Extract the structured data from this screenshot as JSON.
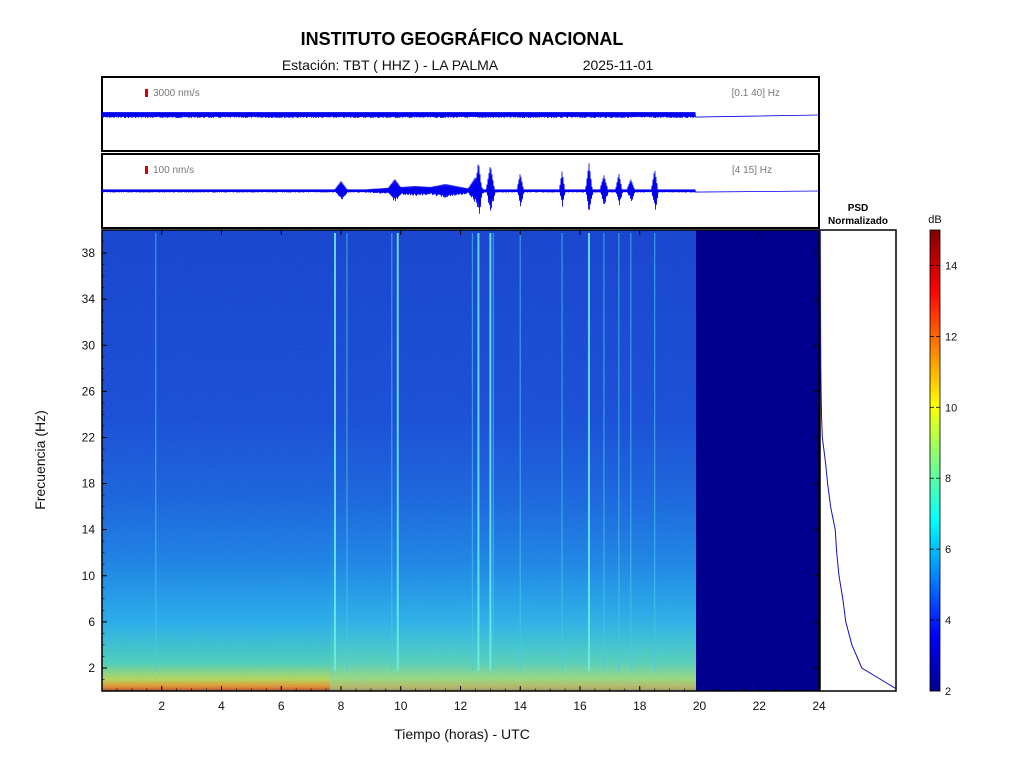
{
  "header": {
    "title": "INSTITUTO GEOGRÁFICO NACIONAL",
    "station": "Estación:  TBT ( HHZ ) - LA PALMA",
    "date": "2025-11-01"
  },
  "trace_top": {
    "scale_label": "3000 nm/s",
    "band_label": "[0.1 40] Hz"
  },
  "trace_bottom": {
    "scale_label": "100 nm/s",
    "band_label": "[4 15] Hz"
  },
  "psd": {
    "title_line1": "PSD",
    "title_line2": "Normalizado"
  },
  "colorbar": {
    "unit": "dB",
    "min": 2,
    "max": 15,
    "ticks": [
      2,
      4,
      6,
      8,
      10,
      12,
      14
    ]
  },
  "chart_data": {
    "type": "heatmap",
    "xlabel": "Tiempo (horas) - UTC",
    "ylabel": "Frecuencia  (Hz)",
    "xlim": [
      0,
      24
    ],
    "ylim": [
      0,
      40
    ],
    "x_ticks": [
      2,
      4,
      6,
      8,
      10,
      12,
      14,
      16,
      18,
      20,
      22,
      24
    ],
    "y_ticks": [
      2,
      6,
      10,
      14,
      18,
      22,
      26,
      30,
      34,
      38
    ],
    "data_end_hour": 19.85,
    "event_hours": [
      1.8,
      7.8,
      8.2,
      9.7,
      9.9,
      12.4,
      12.6,
      13.0,
      13.1,
      14.0,
      15.4,
      16.3,
      16.8,
      17.3,
      17.7,
      18.5
    ],
    "psd_curve": [
      [
        0.2,
        1.0
      ],
      [
        1,
        0.8
      ],
      [
        2,
        0.55
      ],
      [
        4,
        0.42
      ],
      [
        6,
        0.34
      ],
      [
        8,
        0.3
      ],
      [
        10,
        0.25
      ],
      [
        12,
        0.22
      ],
      [
        14,
        0.2
      ],
      [
        16,
        0.14
      ],
      [
        18,
        0.1
      ],
      [
        20,
        0.07
      ],
      [
        22,
        0.03
      ],
      [
        24,
        0.02
      ],
      [
        26,
        0.015
      ],
      [
        28,
        0.01
      ],
      [
        40,
        0.0
      ]
    ]
  }
}
